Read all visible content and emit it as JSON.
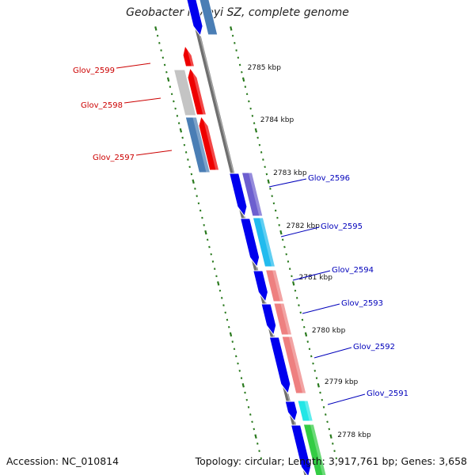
{
  "title": "Geobacter lovleyi SZ, complete genome",
  "footer": {
    "accession": "Accession: NC_010814",
    "summary": "Topology: circular; Length: 3,917,761 bp; Genes: 3,658"
  },
  "colors": {
    "backbone": "#808080",
    "ticks_major": "#2a7a1e",
    "ticks_minor": "#2a7a1e",
    "label_forward": "#cc0000",
    "label_reverse": "#0000bb",
    "cds_blue": "#0000ee",
    "cds_red": "#ee0000"
  },
  "kbp_labels": [
    "2785 kbp",
    "2784 kbp",
    "2783 kbp",
    "2782 kbp",
    "2781 kbp",
    "2780 kbp",
    "2779 kbp",
    "2778 kbp"
  ],
  "gene_labels_left": [
    "Glov_2599",
    "Glov_2598",
    "Glov_2597"
  ],
  "gene_labels_right": [
    "Glov_2596",
    "Glov_2595",
    "Glov_2594",
    "Glov_2593",
    "Glov_2592",
    "Glov_2591"
  ]
}
